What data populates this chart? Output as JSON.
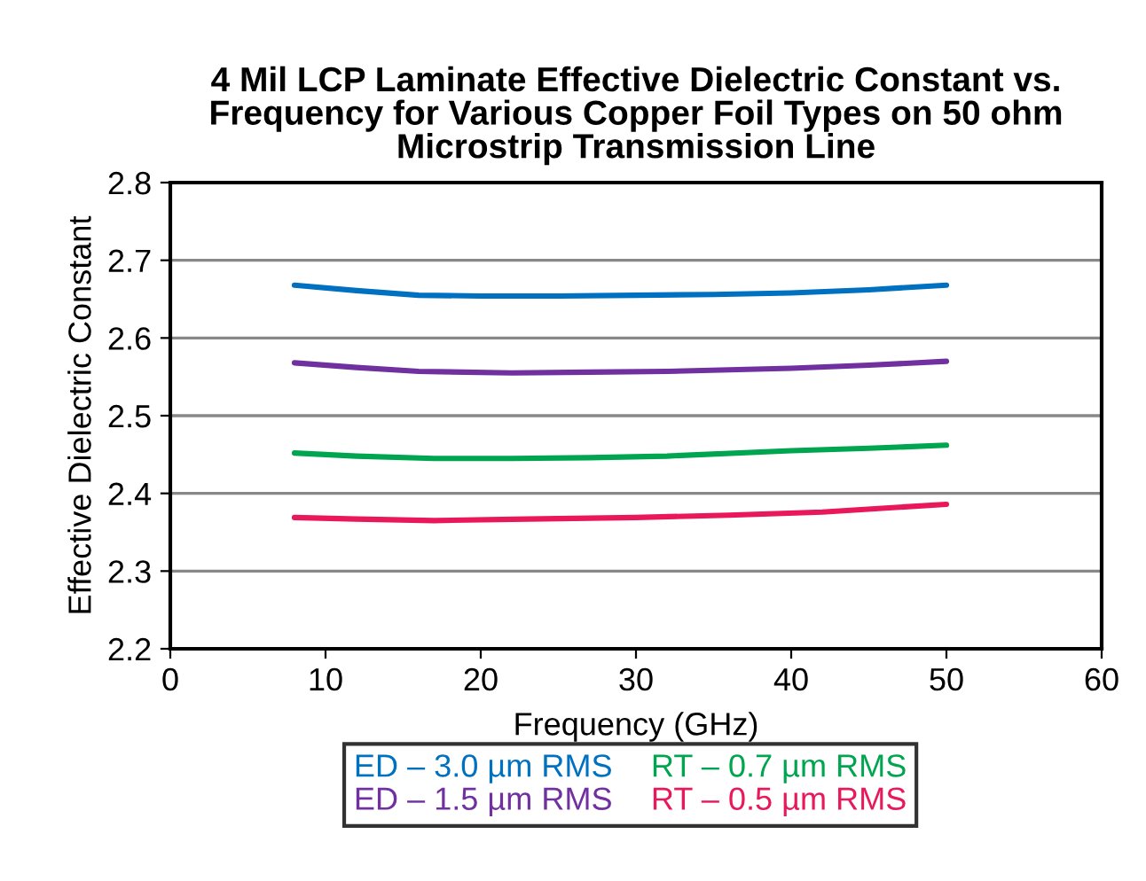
{
  "chart_data": {
    "type": "line",
    "title": "4 Mil LCP Laminate Effective Dielectric Constant vs.\nFrequency for Various Copper Foil Types on 50 ohm\nMicrostrip Transmission Line",
    "xlabel": "Frequency (GHz)",
    "ylabel": "Effective Dielectric Constant",
    "xlim": [
      0,
      60
    ],
    "xticks": [
      0,
      10,
      20,
      30,
      40,
      50,
      60
    ],
    "ylim": [
      2.2,
      2.8
    ],
    "yticks": [
      2.2,
      2.3,
      2.4,
      2.5,
      2.6,
      2.7,
      2.8
    ],
    "grid": "y",
    "legend": "bottom",
    "marker": "none",
    "line_style": "solid",
    "series": [
      {
        "name": "ED – 3.0 µm RMS",
        "color": "#0070c0",
        "x": [
          8,
          12,
          16,
          20,
          25,
          30,
          35,
          40,
          45,
          50
        ],
        "values": [
          2.668,
          2.661,
          2.655,
          2.654,
          2.654,
          2.655,
          2.656,
          2.658,
          2.662,
          2.668
        ]
      },
      {
        "name": "ED – 1.5 µm RMS",
        "color": "#7030a0",
        "x": [
          8,
          12,
          16,
          22,
          27,
          32,
          40,
          45,
          50
        ],
        "values": [
          2.568,
          2.562,
          2.557,
          2.555,
          2.556,
          2.557,
          2.561,
          2.565,
          2.57
        ]
      },
      {
        "name": "RT – 0.7 µm RMS",
        "color": "#00a550",
        "x": [
          8,
          12,
          17,
          22,
          27,
          32,
          40,
          45,
          50
        ],
        "values": [
          2.452,
          2.448,
          2.445,
          2.445,
          2.446,
          2.448,
          2.455,
          2.458,
          2.462
        ]
      },
      {
        "name": "RT – 0.5 µm RMS",
        "color": "#e8185a",
        "x": [
          8,
          12,
          17,
          23,
          30,
          36,
          42,
          50
        ],
        "values": [
          2.369,
          2.367,
          2.365,
          2.367,
          2.369,
          2.372,
          2.376,
          2.386
        ]
      }
    ]
  }
}
